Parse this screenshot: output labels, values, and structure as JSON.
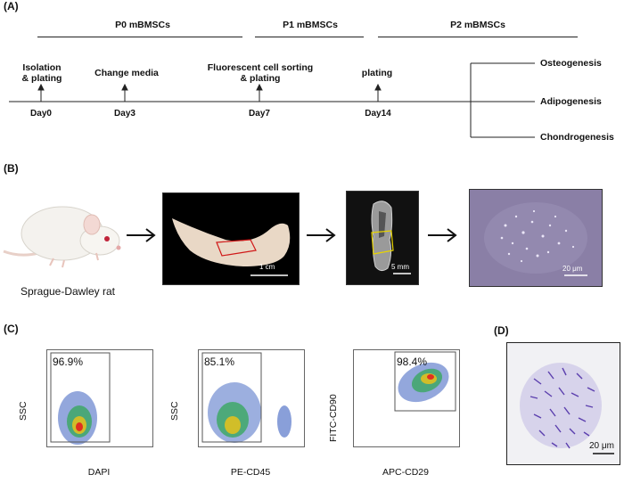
{
  "panelA": {
    "label": "(A)",
    "stages": [
      "P0 mBMSCs",
      "P1 mBMSCs",
      "P2 mBMSCs"
    ],
    "events": [
      {
        "text1": "Isolation",
        "text2": "& plating",
        "day": "Day0"
      },
      {
        "text1": "Change media",
        "text2": "",
        "day": "Day3"
      },
      {
        "text1": "Fluorescent cell sorting",
        "text2": "& plating",
        "day": "Day7"
      },
      {
        "text1": "plating",
        "text2": "",
        "day": "Day14"
      }
    ],
    "fates": [
      "Osteogenesis",
      "Adipogenesis",
      "Chondrogenesis"
    ]
  },
  "panelB": {
    "label": "(B)",
    "rat_caption": "Sprague-Dawley rat",
    "scalebars": [
      "1 cm",
      "5 mm",
      "20 μm"
    ]
  },
  "panelC": {
    "label": "(C)",
    "plots": [
      {
        "ylabel": "SSC",
        "xlabel": "DAPI",
        "percent": "96.9%"
      },
      {
        "ylabel": "SSC",
        "xlabel": "PE-CD45",
        "percent": "85.1%"
      },
      {
        "ylabel": "FITC-CD90",
        "xlabel": "APC-CD29",
        "percent": "98.4%"
      }
    ]
  },
  "panelD": {
    "label": "(D)",
    "scalebar": "20 μm"
  },
  "colors": {
    "line": "#222222",
    "plate": "#8a7fa6",
    "crystal": "#5b3fae"
  }
}
